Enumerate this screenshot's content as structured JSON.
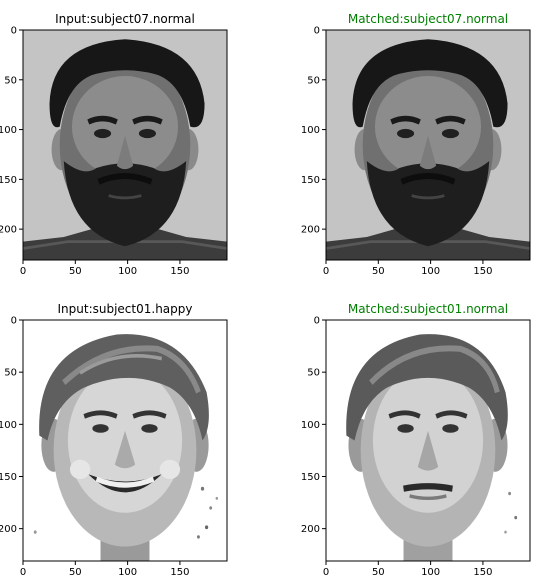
{
  "colors": {
    "input_title": "#000000",
    "matched_title": "#008000",
    "axes": "#000000",
    "background": "#ffffff"
  },
  "chart_data": [
    {
      "type": "image",
      "title": "Input:subject07.normal",
      "title_color": "#000000",
      "content": "grayscale-face-subject07-normal",
      "xlim": [
        0,
        195
      ],
      "ylim": [
        231,
        0
      ],
      "xticks": [
        0,
        50,
        100,
        150
      ],
      "yticks": [
        0,
        50,
        100,
        150,
        200
      ]
    },
    {
      "type": "image",
      "title": "Matched:subject07.normal",
      "title_color": "#008000",
      "content": "grayscale-face-subject07-normal",
      "xlim": [
        0,
        195
      ],
      "ylim": [
        231,
        0
      ],
      "xticks": [
        0,
        50,
        100,
        150
      ],
      "yticks": [
        0,
        50,
        100,
        150,
        200
      ]
    },
    {
      "type": "image",
      "title": "Input:subject01.happy",
      "title_color": "#000000",
      "content": "grayscale-face-subject01-happy",
      "xlim": [
        0,
        195
      ],
      "ylim": [
        231,
        0
      ],
      "xticks": [
        0,
        50,
        100,
        150
      ],
      "yticks": [
        0,
        50,
        100,
        150,
        200
      ]
    },
    {
      "type": "image",
      "title": "Matched:subject01.normal",
      "title_color": "#008000",
      "content": "grayscale-face-subject01-normal",
      "xlim": [
        0,
        195
      ],
      "ylim": [
        231,
        0
      ],
      "xticks": [
        0,
        50,
        100,
        150
      ],
      "yticks": [
        0,
        50,
        100,
        150,
        200
      ]
    }
  ]
}
